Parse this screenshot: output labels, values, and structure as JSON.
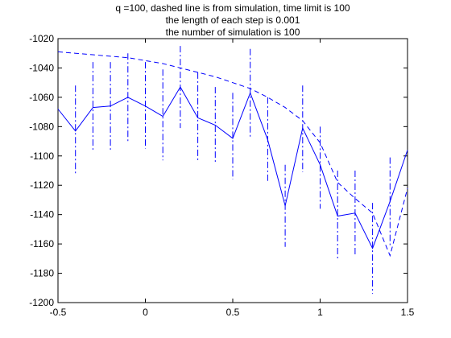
{
  "chart_data": {
    "type": "line",
    "title_lines": [
      "q =100, dashed line is from simulation, time limit is 100",
      "the length of each step is 0.001",
      "the number of simulation is 100"
    ],
    "xlabel": "",
    "ylabel": "",
    "xlim": [
      -0.5,
      1.5
    ],
    "ylim": [
      -1200,
      -1020
    ],
    "x_ticks": [
      -0.5,
      0,
      0.5,
      1,
      1.5
    ],
    "x_tick_labels": [
      "-0.5",
      "0",
      "0.5",
      "1",
      "1.5"
    ],
    "y_ticks": [
      -1200,
      -1180,
      -1160,
      -1140,
      -1120,
      -1100,
      -1080,
      -1060,
      -1040,
      -1020
    ],
    "y_tick_labels": [
      "-1200",
      "-1180",
      "-1160",
      "-1140",
      "-1120",
      "-1100",
      "-1080",
      "-1060",
      "-1040",
      "-1020"
    ],
    "grid": false,
    "legend": "none",
    "color": "#0000ff",
    "series": [
      {
        "style": "solid",
        "x": [
          -0.5,
          -0.4,
          -0.3,
          -0.2,
          -0.1,
          0,
          0.1,
          0.2,
          0.3,
          0.4,
          0.5,
          0.6,
          0.7,
          0.8,
          0.9,
          1.0,
          1.1,
          1.2,
          1.3,
          1.4,
          1.5
        ],
        "y": [
          -1068,
          -1083,
          -1067,
          -1066,
          -1060,
          -1066,
          -1073,
          -1053,
          -1074,
          -1079,
          -1088,
          -1057,
          -1089,
          -1134,
          -1081,
          -1106,
          -1141,
          -1139,
          -1163,
          -1131,
          -1096
        ]
      },
      {
        "style": "dashed",
        "x": [
          -0.5,
          -0.4,
          -0.3,
          -0.2,
          -0.1,
          0,
          0.1,
          0.2,
          0.3,
          0.4,
          0.5,
          0.6,
          0.7,
          0.8,
          0.9,
          1.0,
          1.1,
          1.2,
          1.3,
          1.4,
          1.5
        ],
        "y": [
          -1029,
          -1030,
          -1031,
          -1032,
          -1033,
          -1035,
          -1037,
          -1040,
          -1043,
          -1046,
          -1050,
          -1054,
          -1060,
          -1067,
          -1076,
          -1091,
          -1118,
          -1129,
          -1139,
          -1168,
          -1122
        ]
      }
    ],
    "error_bars": {
      "style": "dash-dot",
      "items": [
        {
          "x": -0.4,
          "low": -1113,
          "high": -1052
        },
        {
          "x": -0.3,
          "low": -1096,
          "high": -1036
        },
        {
          "x": -0.2,
          "low": -1096,
          "high": -1036
        },
        {
          "x": -0.1,
          "low": -1091,
          "high": -1030
        },
        {
          "x": 0,
          "low": -1095,
          "high": -1036
        },
        {
          "x": 0.1,
          "low": -1103,
          "high": -1041
        },
        {
          "x": 0.2,
          "low": -1081,
          "high": -1025
        },
        {
          "x": 0.3,
          "low": -1104,
          "high": -1043
        },
        {
          "x": 0.4,
          "low": -1104,
          "high": -1053
        },
        {
          "x": 0.5,
          "low": -1116,
          "high": -1057
        },
        {
          "x": 0.6,
          "low": -1087,
          "high": -1027
        },
        {
          "x": 0.7,
          "low": -1117,
          "high": -1060
        },
        {
          "x": 0.8,
          "low": -1162,
          "high": -1106
        },
        {
          "x": 0.9,
          "low": -1111,
          "high": -1052
        },
        {
          "x": 1.0,
          "low": -1136,
          "high": -1080
        },
        {
          "x": 1.1,
          "low": -1170,
          "high": -1110
        },
        {
          "x": 1.2,
          "low": -1168,
          "high": -1110
        },
        {
          "x": 1.3,
          "low": -1194,
          "high": -1132
        },
        {
          "x": 1.4,
          "low": -1161,
          "high": -1101
        }
      ]
    }
  }
}
